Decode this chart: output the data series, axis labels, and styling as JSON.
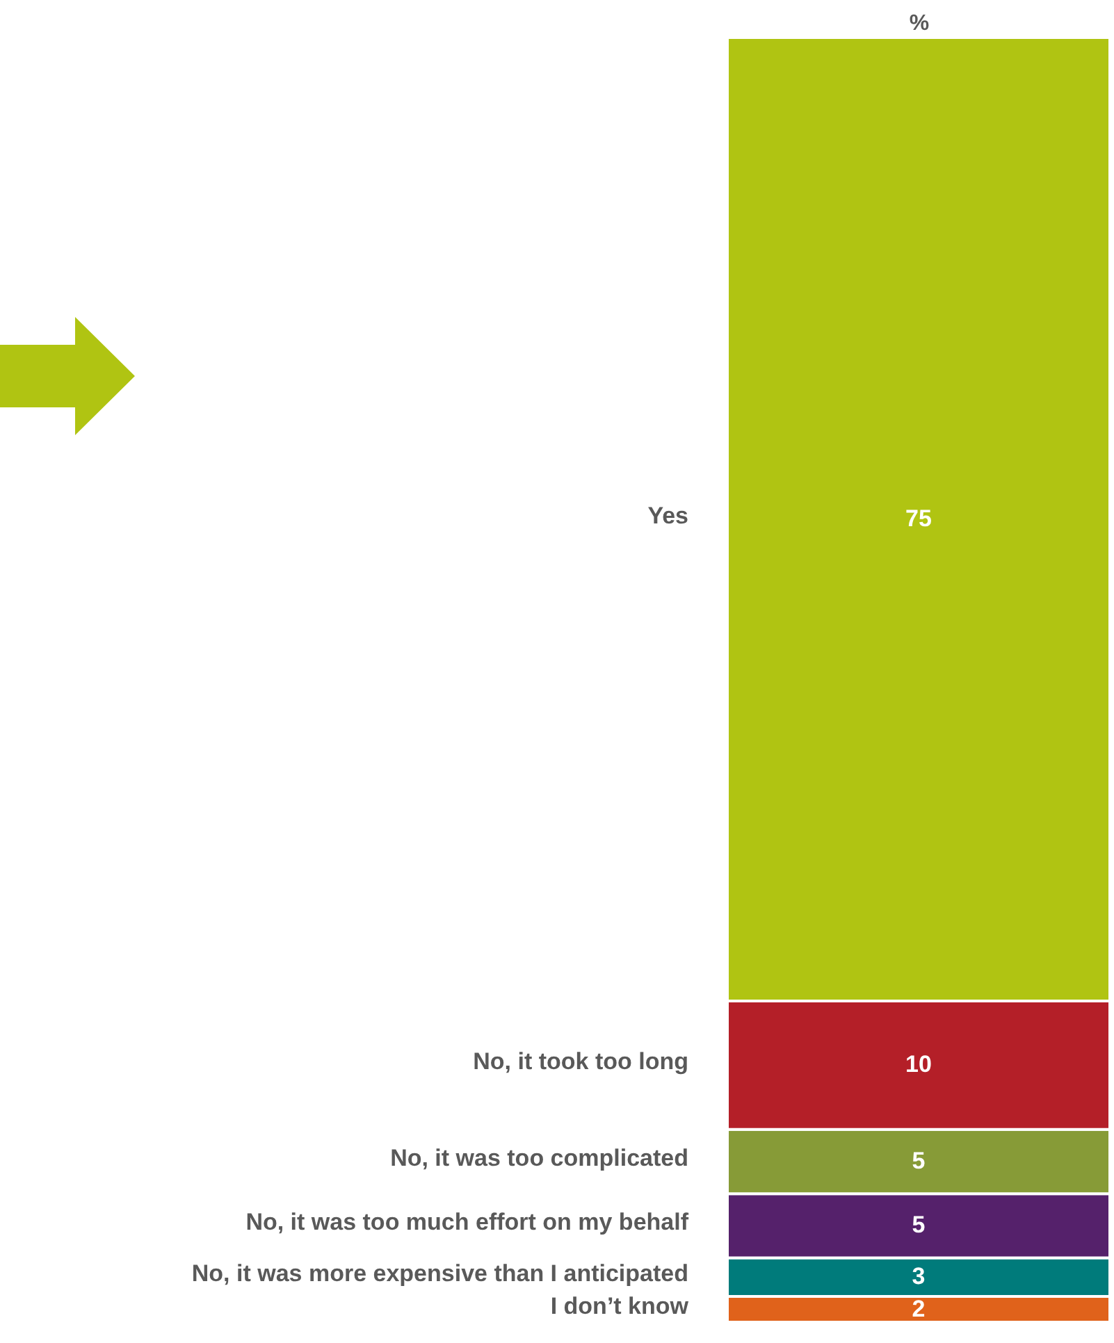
{
  "chart_data": {
    "type": "bar",
    "stacked": true,
    "categories": [
      null
    ],
    "xlabel": "%",
    "data_labels": true,
    "series": [
      {
        "name": "I don’t know",
        "color": "#e0621b",
        "values": [
          2
        ]
      },
      {
        "name": "No, it was more expensive than I anticipated",
        "color": "#007b7b",
        "values": [
          3
        ]
      },
      {
        "name": "No, it was too much effort on my behalf",
        "color": "#55216b",
        "values": [
          5
        ]
      },
      {
        "name": "No, it was too complicated",
        "color": "#879b37",
        "values": [
          5
        ]
      },
      {
        "name": "No, it took too long",
        "color": "#b41f28",
        "values": [
          10
        ]
      },
      {
        "name": "Yes",
        "color": "#b0c412",
        "values": [
          75
        ]
      }
    ]
  }
}
